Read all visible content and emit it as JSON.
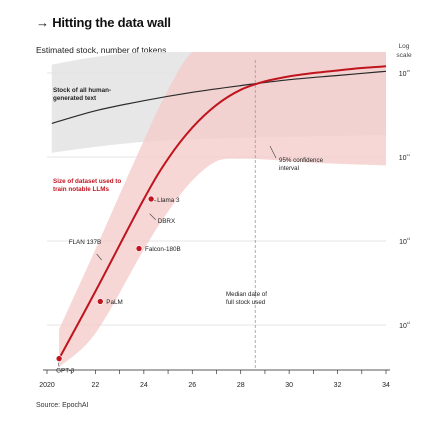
{
  "header": {
    "title": "→ Hitting the data wall",
    "subtitle": "Estimated stock, number of tokens"
  },
  "source": "Source: EpochAI",
  "chart_data": {
    "type": "line",
    "title": "→ Hitting the data wall",
    "subtitle": "Estimated stock, number of tokens",
    "y_scale": "log",
    "y_scale_label": [
      "Log",
      "scale"
    ],
    "x_range": [
      2020,
      2034
    ],
    "x_ticks": [
      2020,
      2022,
      2024,
      2026,
      2028,
      2030,
      2032,
      2034
    ],
    "x_tick_labels": [
      "2020",
      "22",
      "24",
      "26",
      "28",
      "30",
      "32",
      "34"
    ],
    "y_range_exp": [
      11.5,
      15.55
    ],
    "y_ticks_exp": [
      12,
      13,
      14,
      15
    ],
    "y_tick_labels": [
      "10¹²",
      "10¹³",
      "10¹⁴",
      "10¹⁵"
    ],
    "colors": {
      "projection": "#c0141e",
      "confidence_band": "#f4cdca",
      "human_text_band": "#e3e3e3",
      "human_text_line": "#2a2a2a",
      "median_line": "#999999",
      "grid": "#dcdcdc",
      "point": "#c0141e"
    },
    "human_generated_text": {
      "label": "Stock of all human-generated text",
      "label_lines": [
        "Stock of all human-",
        "generated text"
      ],
      "x": [
        2020.2,
        2022,
        2024,
        2026,
        2028,
        2030,
        2032,
        2034
      ],
      "y_exp": [
        14.4,
        14.55,
        14.67,
        14.77,
        14.85,
        14.92,
        14.97,
        15.02
      ],
      "ci_upper_exp": [
        15.1,
        15.19,
        15.27,
        15.34,
        15.39,
        15.43,
        15.48,
        15.52
      ],
      "ci_lower_exp": [
        14.05,
        14.12,
        14.18,
        14.21,
        14.23,
        14.24,
        14.25,
        14.26
      ]
    },
    "dataset_size_projection": {
      "label": "Size of dataset used to train notable LLMs",
      "label_lines": [
        "Size of dataset used to",
        "train notable LLMs"
      ],
      "x": [
        2020.5,
        2022,
        2024,
        2025,
        2026,
        2027,
        2028,
        2029,
        2030,
        2031,
        2032,
        2033,
        2034
      ],
      "y_exp": [
        11.6,
        12.4,
        13.5,
        13.98,
        14.35,
        14.62,
        14.8,
        14.9,
        14.96,
        15.0,
        15.03,
        15.06,
        15.08
      ],
      "ci_upper_exp": [
        11.95,
        12.9,
        14.2,
        14.8,
        15.3,
        15.55,
        15.55,
        15.55,
        15.55,
        15.55,
        15.55,
        15.55,
        15.55
      ],
      "ci_lower_exp": [
        11.5,
        11.9,
        12.9,
        13.35,
        13.72,
        13.95,
        13.98,
        13.97,
        13.95,
        13.93,
        13.92,
        13.91,
        13.9
      ]
    },
    "models": [
      {
        "name": "GPT-3",
        "x": 2020.5,
        "y_exp": 11.6
      },
      {
        "name": "PaLM",
        "x": 2022.2,
        "y_exp": 12.28
      },
      {
        "name": "FLAN 137B",
        "x": 2022.3,
        "y_exp": 12.75
      },
      {
        "name": "Falcon-180B",
        "x": 2023.8,
        "y_exp": 12.91
      },
      {
        "name": "Llama 3",
        "x": 2024.3,
        "y_exp": 13.5
      },
      {
        "name": "DBRX",
        "x": 2024.2,
        "y_exp": 13.36
      }
    ],
    "annotations": {
      "confidence_interval": "95% confidence interval",
      "confidence_interval_lines": [
        "95% confidence",
        "interval"
      ],
      "median_date": "Median date of full stock used",
      "median_date_lines": [
        "Median date of",
        "full stock used"
      ],
      "median_date_x": 2028.6
    }
  }
}
